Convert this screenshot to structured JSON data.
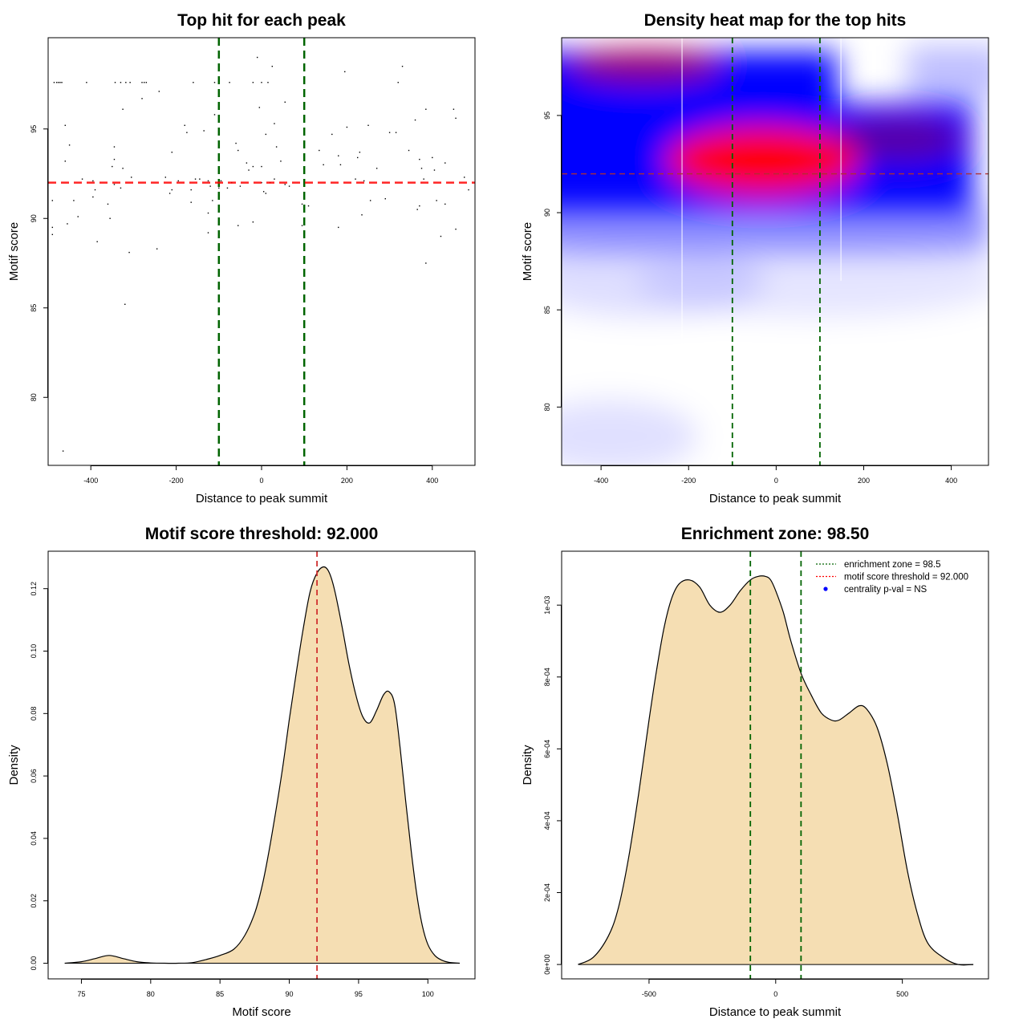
{
  "chart_data": [
    {
      "type": "scatter",
      "title": "Top hit for each peak",
      "xlabel": "Distance to peak summit",
      "ylabel": "Motif score",
      "xlim": [
        -500,
        500
      ],
      "ylim": [
        76.2,
        100.1
      ],
      "xticks": [
        -400,
        -200,
        0,
        200,
        400
      ],
      "yticks": [
        80,
        85,
        90,
        95
      ],
      "vlines": [
        -100,
        100
      ],
      "hline": 92.0,
      "points": [
        [
          -486,
          97.6
        ],
        [
          -480,
          97.6
        ],
        [
          -476,
          97.6
        ],
        [
          -472,
          97.6
        ],
        [
          -468,
          97.6
        ],
        [
          -410,
          97.6
        ],
        [
          -343,
          97.6
        ],
        [
          -330,
          97.6
        ],
        [
          -318,
          97.6
        ],
        [
          -308,
          97.6
        ],
        [
          -280,
          97.6
        ],
        [
          -275,
          97.6
        ],
        [
          -270,
          97.6
        ],
        [
          -160,
          97.6
        ],
        [
          -110,
          97.6
        ],
        [
          -75,
          97.6
        ],
        [
          -20,
          97.6
        ],
        [
          0,
          97.6
        ],
        [
          15,
          97.6
        ],
        [
          320,
          97.6
        ],
        [
          -10,
          99.0
        ],
        [
          25,
          98.5
        ],
        [
          195,
          98.2
        ],
        [
          330,
          98.5
        ],
        [
          -280,
          96.7
        ],
        [
          -325,
          96.1
        ],
        [
          -5,
          96.2
        ],
        [
          55,
          96.5
        ],
        [
          385,
          96.1
        ],
        [
          450,
          96.1
        ],
        [
          -240,
          97.1
        ],
        [
          -110,
          95.8
        ],
        [
          360,
          95.5
        ],
        [
          455,
          95.6
        ],
        [
          -460,
          95.2
        ],
        [
          -180,
          95.2
        ],
        [
          -175,
          94.8
        ],
        [
          -135,
          94.9
        ],
        [
          10,
          94.7
        ],
        [
          30,
          95.3
        ],
        [
          165,
          94.7
        ],
        [
          200,
          95.1
        ],
        [
          250,
          95.2
        ],
        [
          300,
          94.8
        ],
        [
          315,
          94.8
        ],
        [
          -450,
          94.1
        ],
        [
          -345,
          94.0
        ],
        [
          -60,
          94.2
        ],
        [
          -55,
          93.8
        ],
        [
          35,
          94.0
        ],
        [
          135,
          93.8
        ],
        [
          180,
          93.5
        ],
        [
          225,
          93.4
        ],
        [
          345,
          93.8
        ],
        [
          370,
          93.3
        ],
        [
          400,
          93.4
        ],
        [
          430,
          93.1
        ],
        [
          -460,
          93.2
        ],
        [
          -345,
          93.3
        ],
        [
          -210,
          93.7
        ],
        [
          -350,
          92.9
        ],
        [
          -325,
          92.8
        ],
        [
          -35,
          93.1
        ],
        [
          -30,
          92.7
        ],
        [
          -20,
          92.9
        ],
        [
          0,
          92.9
        ],
        [
          45,
          93.2
        ],
        [
          145,
          93.0
        ],
        [
          185,
          93.0
        ],
        [
          230,
          93.7
        ],
        [
          270,
          92.8
        ],
        [
          375,
          92.8
        ],
        [
          405,
          92.7
        ],
        [
          -420,
          92.2
        ],
        [
          -395,
          92.1
        ],
        [
          -305,
          92.3
        ],
        [
          -225,
          92.3
        ],
        [
          -195,
          92.1
        ],
        [
          -155,
          92.2
        ],
        [
          -145,
          92.2
        ],
        [
          -125,
          92.1
        ],
        [
          -95,
          92.1
        ],
        [
          -70,
          92.0
        ],
        [
          -50,
          91.8
        ],
        [
          0,
          92.0
        ],
        [
          30,
          92.2
        ],
        [
          55,
          91.9
        ],
        [
          65,
          91.8
        ],
        [
          100,
          91.9
        ],
        [
          220,
          92.2
        ],
        [
          240,
          92.1
        ],
        [
          380,
          92.2
        ],
        [
          475,
          92.3
        ],
        [
          -345,
          91.9
        ],
        [
          -390,
          91.6
        ],
        [
          -330,
          91.7
        ],
        [
          -210,
          91.6
        ],
        [
          -215,
          91.4
        ],
        [
          -165,
          91.6
        ],
        [
          -120,
          91.8
        ],
        [
          -100,
          91.7
        ],
        [
          -80,
          91.7
        ],
        [
          5,
          91.5
        ],
        [
          10,
          91.4
        ],
        [
          20,
          92.0
        ],
        [
          485,
          91.6
        ],
        [
          -490,
          91.0
        ],
        [
          -440,
          91.0
        ],
        [
          -395,
          91.2
        ],
        [
          -360,
          90.8
        ],
        [
          -165,
          90.9
        ],
        [
          -115,
          91.0
        ],
        [
          110,
          90.7
        ],
        [
          255,
          91.0
        ],
        [
          290,
          91.1
        ],
        [
          370,
          90.7
        ],
        [
          365,
          90.5
        ],
        [
          410,
          91.0
        ],
        [
          430,
          90.8
        ],
        [
          -430,
          90.1
        ],
        [
          -355,
          90.0
        ],
        [
          -125,
          90.3
        ],
        [
          95,
          90.8
        ],
        [
          235,
          90.2
        ],
        [
          -490,
          89.5
        ],
        [
          -490,
          89.1
        ],
        [
          -455,
          89.7
        ],
        [
          -55,
          89.6
        ],
        [
          -20,
          89.8
        ],
        [
          -125,
          89.2
        ],
        [
          95,
          89.6
        ],
        [
          180,
          89.5
        ],
        [
          420,
          89.0
        ],
        [
          455,
          89.4
        ],
        [
          -385,
          88.7
        ],
        [
          -310,
          88.1
        ],
        [
          -245,
          88.3
        ],
        [
          385,
          87.5
        ],
        [
          -320,
          85.2
        ],
        [
          -465,
          77.0
        ]
      ]
    },
    {
      "type": "heatmap",
      "title": "Density heat map for the top hits",
      "xlabel": "Distance to peak summit",
      "ylabel": "Motif score",
      "xlim": [
        -490,
        485
      ],
      "ylim": [
        77.0,
        99.0
      ],
      "xticks": [
        -400,
        -200,
        0,
        200,
        400
      ],
      "yticks": [
        80,
        85,
        90,
        95
      ],
      "vlines": [
        -100,
        100
      ],
      "hline": 92.0,
      "colors": {
        "low": "#ffffff",
        "mid": "#0000ff",
        "high": "#ff0000"
      },
      "density_modes": [
        {
          "x": -30,
          "y": 92.7,
          "weight": 1.0
        },
        {
          "x": -300,
          "y": 97.6,
          "weight": 0.55
        },
        {
          "x": 280,
          "y": 93.8,
          "weight": 0.35
        }
      ]
    },
    {
      "type": "area",
      "title": "Motif score threshold: 92.000",
      "xlabel": "Motif score",
      "ylabel": "Density",
      "xlim": [
        72.6,
        103.4
      ],
      "ylim": [
        -0.005,
        0.132
      ],
      "xticks": [
        75,
        80,
        85,
        90,
        95,
        100
      ],
      "yticks": [
        0.0,
        0.02,
        0.04,
        0.06,
        0.08,
        0.1,
        0.12
      ],
      "ytick_labels": [
        "0.00",
        "0.02",
        "0.04",
        "0.06",
        "0.08",
        "0.10",
        "0.12"
      ],
      "vlines": [
        92.0
      ],
      "fill": "#f5deb3",
      "x": [
        73.8,
        75.0,
        76.0,
        77.0,
        78.0,
        79.0,
        80.0,
        81.0,
        82.0,
        83.0,
        84.0,
        85.0,
        86.0,
        86.8,
        87.5,
        88.0,
        88.5,
        89.0,
        89.5,
        90.0,
        90.5,
        91.0,
        91.5,
        92.0,
        92.5,
        92.9,
        93.3,
        93.8,
        94.3,
        94.8,
        95.3,
        95.8,
        96.3,
        96.8,
        97.2,
        97.6,
        98.0,
        98.4,
        98.8,
        99.2,
        99.6,
        100.0,
        100.5,
        101.0,
        101.5,
        102.3
      ],
      "y": [
        0.0,
        0.0005,
        0.0015,
        0.0025,
        0.0015,
        0.0005,
        0.0001,
        0.0,
        0.0,
        0.0002,
        0.0012,
        0.0025,
        0.0045,
        0.009,
        0.016,
        0.024,
        0.035,
        0.048,
        0.062,
        0.078,
        0.093,
        0.107,
        0.119,
        0.125,
        0.127,
        0.125,
        0.119,
        0.108,
        0.096,
        0.086,
        0.079,
        0.077,
        0.081,
        0.086,
        0.087,
        0.083,
        0.069,
        0.052,
        0.036,
        0.022,
        0.012,
        0.006,
        0.0025,
        0.001,
        0.0003,
        0.0
      ]
    },
    {
      "type": "area",
      "title": "Enrichment zone: 98.50",
      "xlabel": "Distance to peak summit",
      "ylabel": "Density",
      "xlim": [
        -845,
        840
      ],
      "ylim": [
        -4e-05,
        0.00115
      ],
      "xticks": [
        -500,
        0,
        500
      ],
      "yticks": [
        0,
        0.0002,
        0.0004,
        0.0006,
        0.0008,
        0.001
      ],
      "ytick_labels": [
        "0e+00",
        "2e-04",
        "4e-04",
        "6e-04",
        "8e-04",
        "1e-03"
      ],
      "vlines": [
        -100,
        100
      ],
      "fill": "#f5deb3",
      "x": [
        -780,
        -720,
        -660,
        -620,
        -580,
        -540,
        -500,
        -470,
        -440,
        -410,
        -380,
        -340,
        -300,
        -260,
        -220,
        -180,
        -140,
        -100,
        -70,
        -40,
        -20,
        0,
        30,
        60,
        100,
        140,
        180,
        220,
        250,
        290,
        330,
        360,
        400,
        440,
        480,
        520,
        560,
        600,
        660,
        720,
        780
      ],
      "y": [
        0.0,
        2e-05,
        8e-05,
        0.00016,
        0.0003,
        0.00048,
        0.00068,
        0.00082,
        0.00094,
        0.00102,
        0.00106,
        0.00107,
        0.00105,
        0.001,
        0.00098,
        0.001,
        0.00104,
        0.00107,
        0.00108,
        0.00108,
        0.00107,
        0.00104,
        0.00098,
        0.0009,
        0.00081,
        0.00075,
        0.0007,
        0.00068,
        0.00068,
        0.0007,
        0.00072,
        0.00071,
        0.00066,
        0.00056,
        0.00042,
        0.00026,
        0.00014,
        6e-05,
        2e-05,
        0.0,
        0.0
      ],
      "legend": {
        "position": "top-right",
        "items": [
          {
            "label": "enrichment zone = 98.5",
            "color": "#006400",
            "style": "dotted-line"
          },
          {
            "label": "motif score threshold = 92.000",
            "color": "#ff0000",
            "style": "dotted-line"
          },
          {
            "label": "centrality p-val = NS",
            "color": "#0000ff",
            "style": "point"
          }
        ]
      }
    }
  ]
}
